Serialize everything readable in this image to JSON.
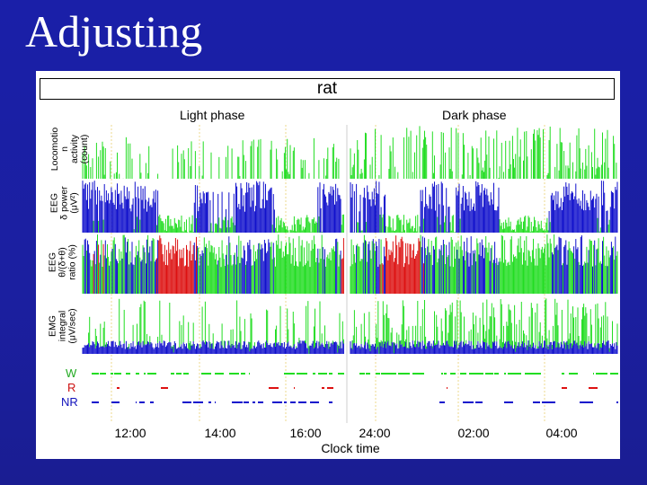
{
  "slide": {
    "title": "Adjusting"
  },
  "colors": {
    "background": "#1b1fa0",
    "wake": "#22dd22",
    "rem": "#dd1111",
    "nrem": "#1111cc",
    "divider": "#e8d070"
  },
  "chart_data": {
    "type": "bar",
    "title": "rat",
    "phases": [
      "Light phase",
      "Dark phase"
    ],
    "panels": [
      {
        "id": "locomotion",
        "ylabel": "Locomotio\nn\nactivity\n(count)"
      },
      {
        "id": "eeg-delta",
        "ylabel": "EEG\nδ power\n(μV²)"
      },
      {
        "id": "eeg-ratio",
        "ylabel": "EEG\nθ/(δ+θ)\nratio (%)"
      },
      {
        "id": "emg",
        "ylabel": "EMG\nintegral\n(μV/sec)"
      }
    ],
    "hypnogram_states": [
      "W",
      "R",
      "NR"
    ],
    "x_ticks": [
      "12:00",
      "14:00",
      "16:00",
      "24:00",
      "02:00",
      "04:00"
    ],
    "xlabel": "Clock time",
    "grid": false
  }
}
